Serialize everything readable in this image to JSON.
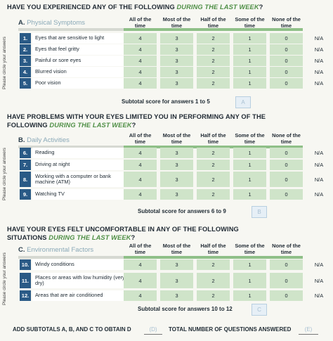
{
  "columns": [
    "All of the time",
    "Most of the time",
    "Half of the time",
    "Some of the time",
    "None of the time"
  ],
  "circle_label": "Please circle your answers",
  "na_label": "N/A",
  "sections": [
    {
      "question_prefix": "HAVE YOU EXPERIENCED ANY OF THE FOLLOWING ",
      "question_emph": "DURING THE LAST WEEK",
      "question_suffix": "?",
      "letter": "A.",
      "name": "Physical Symptoms",
      "rows": [
        {
          "num": "1.",
          "label": "Eyes that are sensitive to light",
          "values": [
            "4",
            "3",
            "2",
            "1",
            "0"
          ]
        },
        {
          "num": "2.",
          "label": "Eyes that feel gritty",
          "values": [
            "4",
            "3",
            "2",
            "1",
            "0"
          ]
        },
        {
          "num": "3.",
          "label": "Painful or sore eyes",
          "values": [
            "4",
            "3",
            "2",
            "1",
            "0"
          ]
        },
        {
          "num": "4.",
          "label": "Blurred vision",
          "values": [
            "4",
            "3",
            "2",
            "1",
            "0"
          ]
        },
        {
          "num": "5.",
          "label": "Poor vision",
          "values": [
            "4",
            "3",
            "2",
            "1",
            "0"
          ]
        }
      ],
      "subtotal_label": "Subtotal score for answers 1 to 5",
      "subtotal_box": "A"
    },
    {
      "question_prefix": "HAVE PROBLEMS WITH YOUR EYES LIMITED YOU IN PERFORMING ANY OF THE FOLLOWING ",
      "question_emph": "DURING THE LAST WEEK",
      "question_suffix": "?",
      "letter": "B.",
      "name": "Daily Activities",
      "rows": [
        {
          "num": "6.",
          "label": "Reading",
          "values": [
            "4",
            "3",
            "2",
            "1",
            "0"
          ]
        },
        {
          "num": "7.",
          "label": "Driving at night",
          "values": [
            "4",
            "3",
            "2",
            "1",
            "0"
          ]
        },
        {
          "num": "8.",
          "label": "Working with a computer or bank machine (ATM)",
          "values": [
            "4",
            "3",
            "2",
            "1",
            "0"
          ]
        },
        {
          "num": "9.",
          "label": "Watching TV",
          "values": [
            "4",
            "3",
            "2",
            "1",
            "0"
          ]
        }
      ],
      "subtotal_label": "Subtotal score for answers 6 to 9",
      "subtotal_box": "B"
    },
    {
      "question_prefix": "HAVE YOUR EYES FELT UNCOMFORTABLE IN ANY OF THE FOLLOWING SITUATIONS ",
      "question_emph": "DURING THE LAST WEEK",
      "question_suffix": "?",
      "letter": "C.",
      "name": "Environmental Factors",
      "rows": [
        {
          "num": "10.",
          "label": "Windy conditions",
          "values": [
            "4",
            "3",
            "2",
            "1",
            "0"
          ]
        },
        {
          "num": "11.",
          "label": "Places or areas with low humidity (very dry)",
          "values": [
            "4",
            "3",
            "2",
            "1",
            "0"
          ]
        },
        {
          "num": "12.",
          "label": "Areas that are air conditioned",
          "values": [
            "4",
            "3",
            "2",
            "1",
            "0"
          ]
        }
      ],
      "subtotal_label": "Subtotal score for answers 10 to 12",
      "subtotal_box": "C"
    }
  ],
  "footer": {
    "add_label": "ADD SUBTOTALS A, B, AND C TO OBTAIN D",
    "d_box": "(D)",
    "total_label": "TOTAL NUMBER OF QUESTIONS ANSWERED",
    "e_box": "(E)"
  },
  "colors": {
    "row_number_bg": "#2a5a86",
    "answer_cell_bg": "#cfe4c9",
    "accent_green": "#4f8f46"
  }
}
